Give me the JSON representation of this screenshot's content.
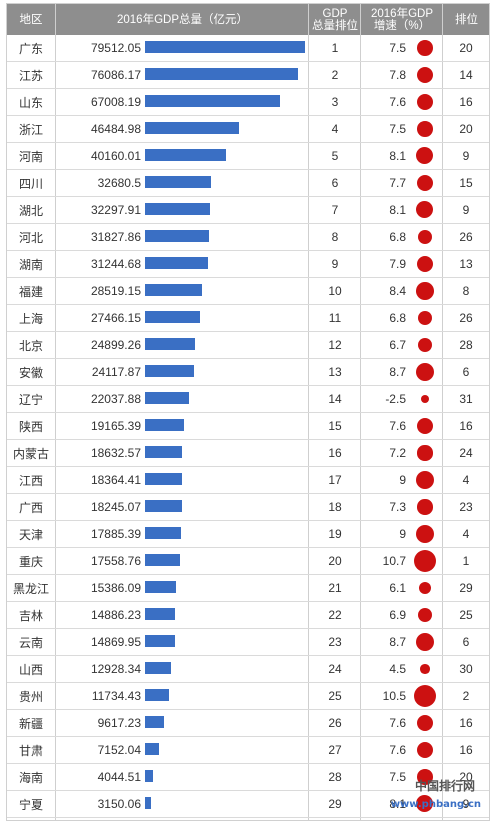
{
  "header": {
    "region": "地区",
    "gdp": "2016年GDP总量（亿元）",
    "rank_line1": "GDP",
    "rank_line2": "总量排位",
    "growth_line1": "2016年GDP",
    "growth_line2": "增速（%）",
    "growth_rank": "排位"
  },
  "colors": {
    "bar": "#3a6fc4",
    "dot": "#cc1111",
    "header_bg": "#8e8e8e"
  },
  "chart_data": {
    "type": "table",
    "columns": [
      "地区",
      "2016年GDP总量（亿元）",
      "GDP总量排位",
      "2016年GDP增速（%）",
      "排位"
    ],
    "rows": [
      {
        "region": "广东",
        "gdp": "79512.05",
        "rank": "1",
        "growth": "7.5",
        "growth_rank": "20"
      },
      {
        "region": "江苏",
        "gdp": "76086.17",
        "rank": "2",
        "growth": "7.8",
        "growth_rank": "14"
      },
      {
        "region": "山东",
        "gdp": "67008.19",
        "rank": "3",
        "growth": "7.6",
        "growth_rank": "16"
      },
      {
        "region": "浙江",
        "gdp": "46484.98",
        "rank": "4",
        "growth": "7.5",
        "growth_rank": "20"
      },
      {
        "region": "河南",
        "gdp": "40160.01",
        "rank": "5",
        "growth": "8.1",
        "growth_rank": "9"
      },
      {
        "region": "四川",
        "gdp": "32680.5",
        "rank": "6",
        "growth": "7.7",
        "growth_rank": "15"
      },
      {
        "region": "湖北",
        "gdp": "32297.91",
        "rank": "7",
        "growth": "8.1",
        "growth_rank": "9"
      },
      {
        "region": "河北",
        "gdp": "31827.86",
        "rank": "8",
        "growth": "6.8",
        "growth_rank": "26"
      },
      {
        "region": "湖南",
        "gdp": "31244.68",
        "rank": "9",
        "growth": "7.9",
        "growth_rank": "13"
      },
      {
        "region": "福建",
        "gdp": "28519.15",
        "rank": "10",
        "growth": "8.4",
        "growth_rank": "8"
      },
      {
        "region": "上海",
        "gdp": "27466.15",
        "rank": "11",
        "growth": "6.8",
        "growth_rank": "26"
      },
      {
        "region": "北京",
        "gdp": "24899.26",
        "rank": "12",
        "growth": "6.7",
        "growth_rank": "28"
      },
      {
        "region": "安徽",
        "gdp": "24117.87",
        "rank": "13",
        "growth": "8.7",
        "growth_rank": "6"
      },
      {
        "region": "辽宁",
        "gdp": "22037.88",
        "rank": "14",
        "growth": "-2.5",
        "growth_rank": "31"
      },
      {
        "region": "陕西",
        "gdp": "19165.39",
        "rank": "15",
        "growth": "7.6",
        "growth_rank": "16"
      },
      {
        "region": "内蒙古",
        "gdp": "18632.57",
        "rank": "16",
        "growth": "7.2",
        "growth_rank": "24"
      },
      {
        "region": "江西",
        "gdp": "18364.41",
        "rank": "17",
        "growth": "9",
        "growth_rank": "4"
      },
      {
        "region": "广西",
        "gdp": "18245.07",
        "rank": "18",
        "growth": "7.3",
        "growth_rank": "23"
      },
      {
        "region": "天津",
        "gdp": "17885.39",
        "rank": "19",
        "growth": "9",
        "growth_rank": "4"
      },
      {
        "region": "重庆",
        "gdp": "17558.76",
        "rank": "20",
        "growth": "10.7",
        "growth_rank": "1"
      },
      {
        "region": "黑龙江",
        "gdp": "15386.09",
        "rank": "21",
        "growth": "6.1",
        "growth_rank": "29"
      },
      {
        "region": "吉林",
        "gdp": "14886.23",
        "rank": "22",
        "growth": "6.9",
        "growth_rank": "25"
      },
      {
        "region": "云南",
        "gdp": "14869.95",
        "rank": "23",
        "growth": "8.7",
        "growth_rank": "6"
      },
      {
        "region": "山西",
        "gdp": "12928.34",
        "rank": "24",
        "growth": "4.5",
        "growth_rank": "30"
      },
      {
        "region": "贵州",
        "gdp": "11734.43",
        "rank": "25",
        "growth": "10.5",
        "growth_rank": "2"
      },
      {
        "region": "新疆",
        "gdp": "9617.23",
        "rank": "26",
        "growth": "7.6",
        "growth_rank": "16"
      },
      {
        "region": "甘肃",
        "gdp": "7152.04",
        "rank": "27",
        "growth": "7.6",
        "growth_rank": "16"
      },
      {
        "region": "海南",
        "gdp": "4044.51",
        "rank": "28",
        "growth": "7.5",
        "growth_rank": "20"
      },
      {
        "region": "宁夏",
        "gdp": "3150.06",
        "rank": "29",
        "growth": "8.1",
        "growth_rank": "9"
      }
    ]
  },
  "watermark": {
    "line1": "中国排行网",
    "line2": "www.phbang.cn"
  }
}
